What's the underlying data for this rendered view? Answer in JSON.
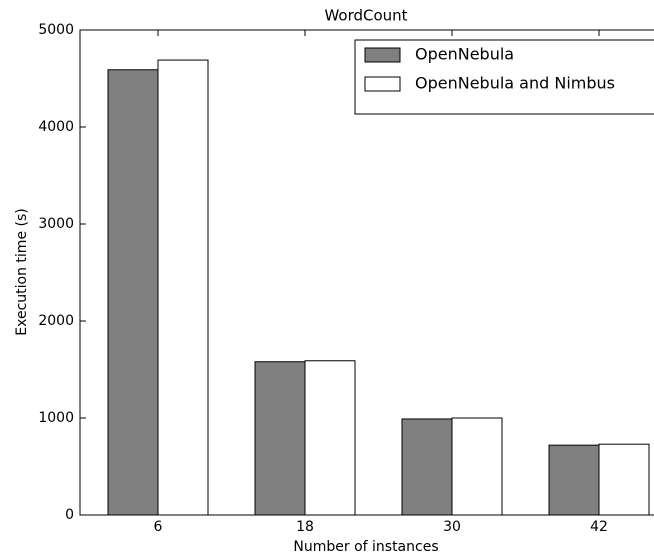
{
  "chart_data": {
    "type": "bar",
    "title": "WordCount",
    "x_label": "Number of instances",
    "y_label": "Execution time (s)",
    "categories": [
      "6",
      "18",
      "30",
      "42"
    ],
    "series": [
      {
        "name": "OpenNebula",
        "color": "#808080",
        "values": [
          4590,
          1580,
          990,
          720
        ]
      },
      {
        "name": "OpenNebula and Nimbus",
        "color": "#ffffff",
        "values": [
          4690,
          1590,
          1000,
          730
        ]
      }
    ],
    "ylim": [
      0,
      5000
    ],
    "yticks": [
      0,
      1000,
      2000,
      3000,
      4000,
      5000
    ],
    "legend": "upper right",
    "grid": false
  }
}
